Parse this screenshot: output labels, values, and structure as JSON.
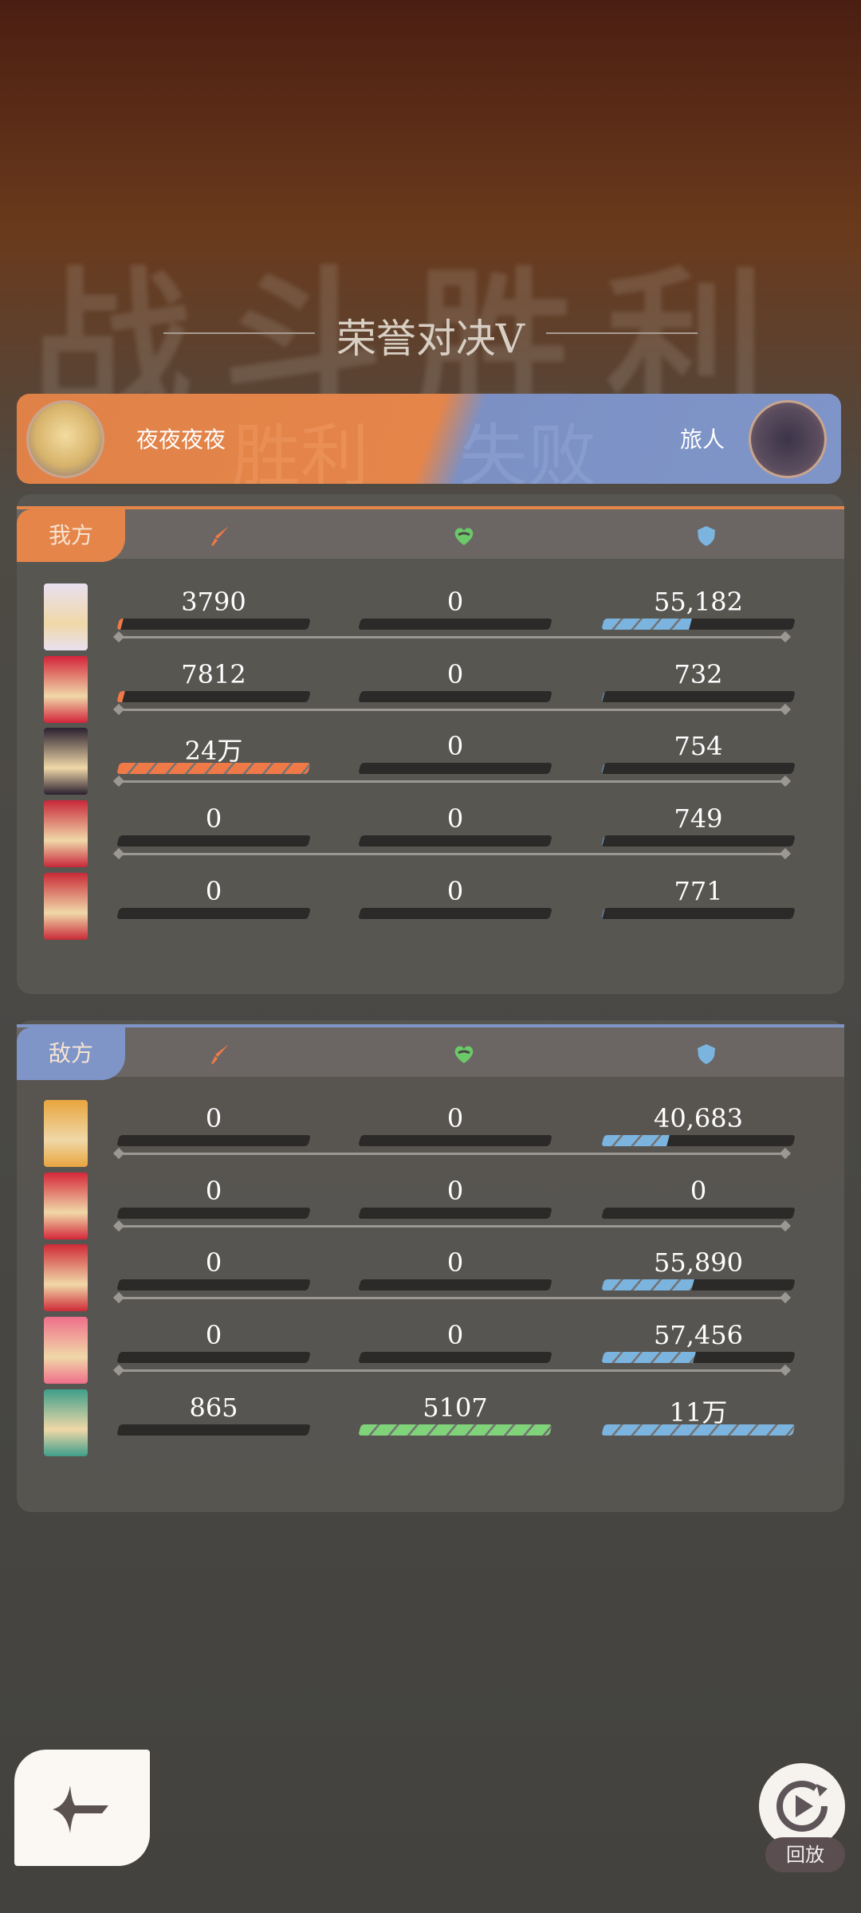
{
  "background_text": "战斗胜利",
  "title": "荣誉对决Ⅴ",
  "banner": {
    "left_player": "夜夜夜夜",
    "left_result": "胜利",
    "right_result": "失败",
    "right_player": "旅人"
  },
  "colors": {
    "damage": "#ef7a48",
    "heal": "#7fd47a",
    "tank": "#7cb4e0",
    "ally": "#e5854a",
    "enemy": "#7f95c8"
  },
  "icons": {
    "damage": "sword-icon",
    "heal": "heart-icon",
    "tank": "shield-icon"
  },
  "ally": {
    "label": "我方",
    "rows": [
      {
        "damage": "3790",
        "heal": "0",
        "tank": "55,182",
        "damage_fill": 0.02,
        "heal_fill": 0,
        "tank_fill": 0.46
      },
      {
        "damage": "7812",
        "heal": "0",
        "tank": "732",
        "damage_fill": 0.03,
        "heal_fill": 0,
        "tank_fill": 0.005
      },
      {
        "damage": "24万",
        "heal": "0",
        "tank": "754",
        "damage_fill": 1,
        "heal_fill": 0,
        "tank_fill": 0.005
      },
      {
        "damage": "0",
        "heal": "0",
        "tank": "749",
        "damage_fill": 0,
        "heal_fill": 0,
        "tank_fill": 0.005
      },
      {
        "damage": "0",
        "heal": "0",
        "tank": "771",
        "damage_fill": 0,
        "heal_fill": 0,
        "tank_fill": 0.005
      }
    ]
  },
  "enemy": {
    "label": "敌方",
    "rows": [
      {
        "damage": "0",
        "heal": "0",
        "tank": "40,683",
        "damage_fill": 0,
        "heal_fill": 0,
        "tank_fill": 0.34
      },
      {
        "damage": "0",
        "heal": "0",
        "tank": "0",
        "damage_fill": 0,
        "heal_fill": 0,
        "tank_fill": 0
      },
      {
        "damage": "0",
        "heal": "0",
        "tank": "55,890",
        "damage_fill": 0,
        "heal_fill": 0,
        "tank_fill": 0.47
      },
      {
        "damage": "0",
        "heal": "0",
        "tank": "57,456",
        "damage_fill": 0,
        "heal_fill": 0,
        "tank_fill": 0.48
      },
      {
        "damage": "865",
        "heal": "5107",
        "tank": "11万",
        "damage_fill": 0,
        "heal_fill": 1,
        "tank_fill": 1
      }
    ]
  },
  "replay_label": "回放"
}
